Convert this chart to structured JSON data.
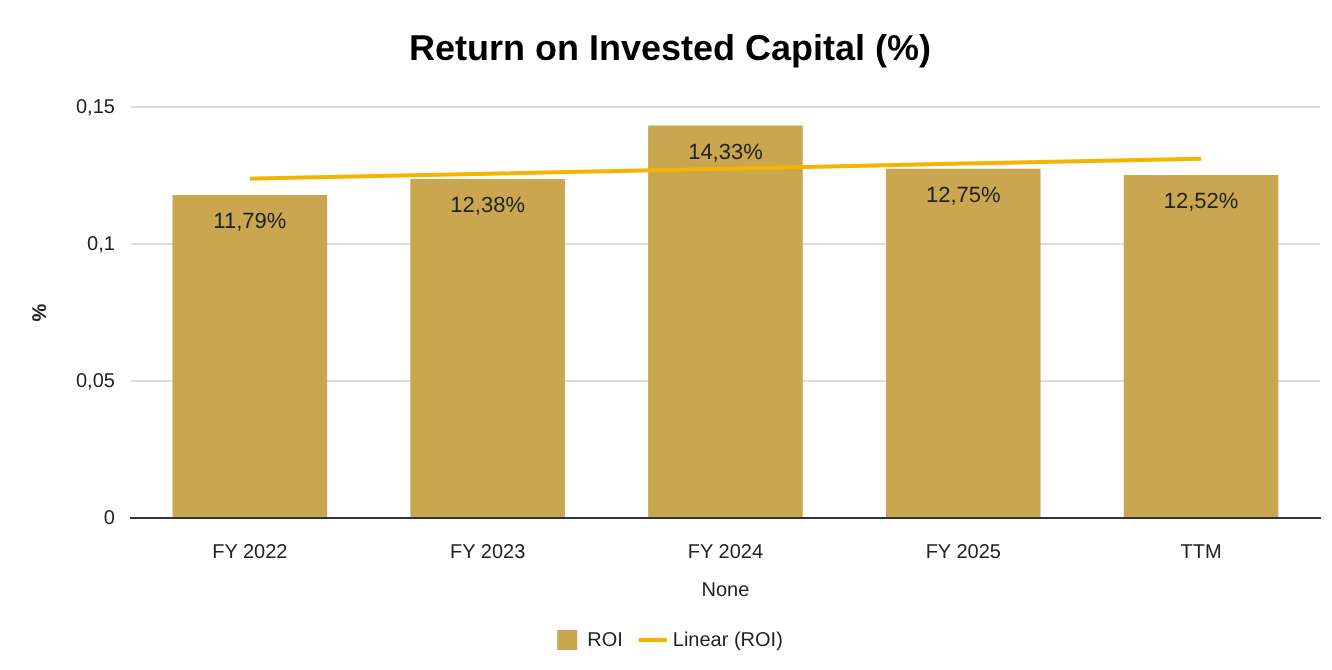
{
  "chart_data": {
    "type": "bar",
    "title": "Return on Invested Capital (%)",
    "xlabel": "None",
    "ylabel": "%",
    "categories": [
      "FY 2022",
      "FY 2023",
      "FY 2024",
      "FY 2025",
      "TTM"
    ],
    "series": [
      {
        "name": "ROI",
        "color": "#c9a64f",
        "values": [
          0.1179,
          0.1238,
          0.1433,
          0.1275,
          0.1252
        ],
        "value_labels": [
          "11,79%",
          "12,38%",
          "14,33%",
          "12,75%",
          "12,52%"
        ]
      },
      {
        "name": "Linear (ROI)",
        "type": "line",
        "color": "#f4b400",
        "values": [
          0.1239,
          0.1257,
          0.1275,
          0.1294,
          0.1312
        ]
      }
    ],
    "ylim": [
      0,
      0.15
    ],
    "yticks": [
      0,
      {
        "value": 0.05,
        "label": "0,05"
      },
      {
        "value": 0.1,
        "label": "0,1"
      },
      {
        "value": 0.15,
        "label": "0,15"
      }
    ],
    "grid": "y",
    "legend": "bottom",
    "marker": "none",
    "line_style": "solid"
  }
}
